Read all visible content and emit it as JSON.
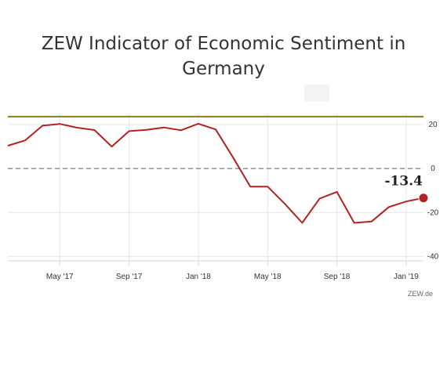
{
  "chart_data": {
    "type": "line",
    "title_lines": [
      "ZEW Indicator of Economic Sentiment in",
      "Germany"
    ],
    "credit": "ZEW.de",
    "y_ticks": [
      20,
      0,
      -20,
      -40
    ],
    "x_ticks": [
      {
        "label": "May '17",
        "date": "2017-05"
      },
      {
        "label": "Sep '17",
        "date": "2017-09"
      },
      {
        "label": "Jan '18",
        "date": "2018-01"
      },
      {
        "label": "May '18",
        "date": "2018-05"
      },
      {
        "label": "Sep '18",
        "date": "2018-09"
      },
      {
        "label": "Jan '19",
        "date": "2019-01"
      }
    ],
    "ylim": [
      -42,
      25
    ],
    "xlim": [
      "2017-02",
      "2019-02"
    ],
    "series": [
      {
        "color": "#b22222",
        "x": [
          "2017-02",
          "2017-03",
          "2017-04",
          "2017-05",
          "2017-06",
          "2017-07",
          "2017-08",
          "2017-09",
          "2017-10",
          "2017-11",
          "2017-12",
          "2018-01",
          "2018-02",
          "2018-03",
          "2018-04",
          "2018-05",
          "2018-06",
          "2018-07",
          "2018-08",
          "2018-09",
          "2018-10",
          "2018-11",
          "2018-12",
          "2019-01",
          "2019-02"
        ],
        "values": [
          10.4,
          12.8,
          19.5,
          20.3,
          18.6,
          17.5,
          10.0,
          17.0,
          17.6,
          18.7,
          17.4,
          20.4,
          17.8,
          5.1,
          -8.2,
          -8.2,
          -16.1,
          -24.7,
          -13.7,
          -10.6,
          -24.7,
          -24.1,
          -17.5,
          -15.0,
          -13.4
        ]
      }
    ],
    "reference_lines": [
      {
        "value": 23.6,
        "color": "#8b7d1e",
        "style": "solid"
      },
      {
        "value": 0,
        "color": "#999999",
        "style": "dashed"
      }
    ],
    "annotation": {
      "text": "-13.4",
      "date": "2019-02",
      "value": -13.4
    }
  }
}
